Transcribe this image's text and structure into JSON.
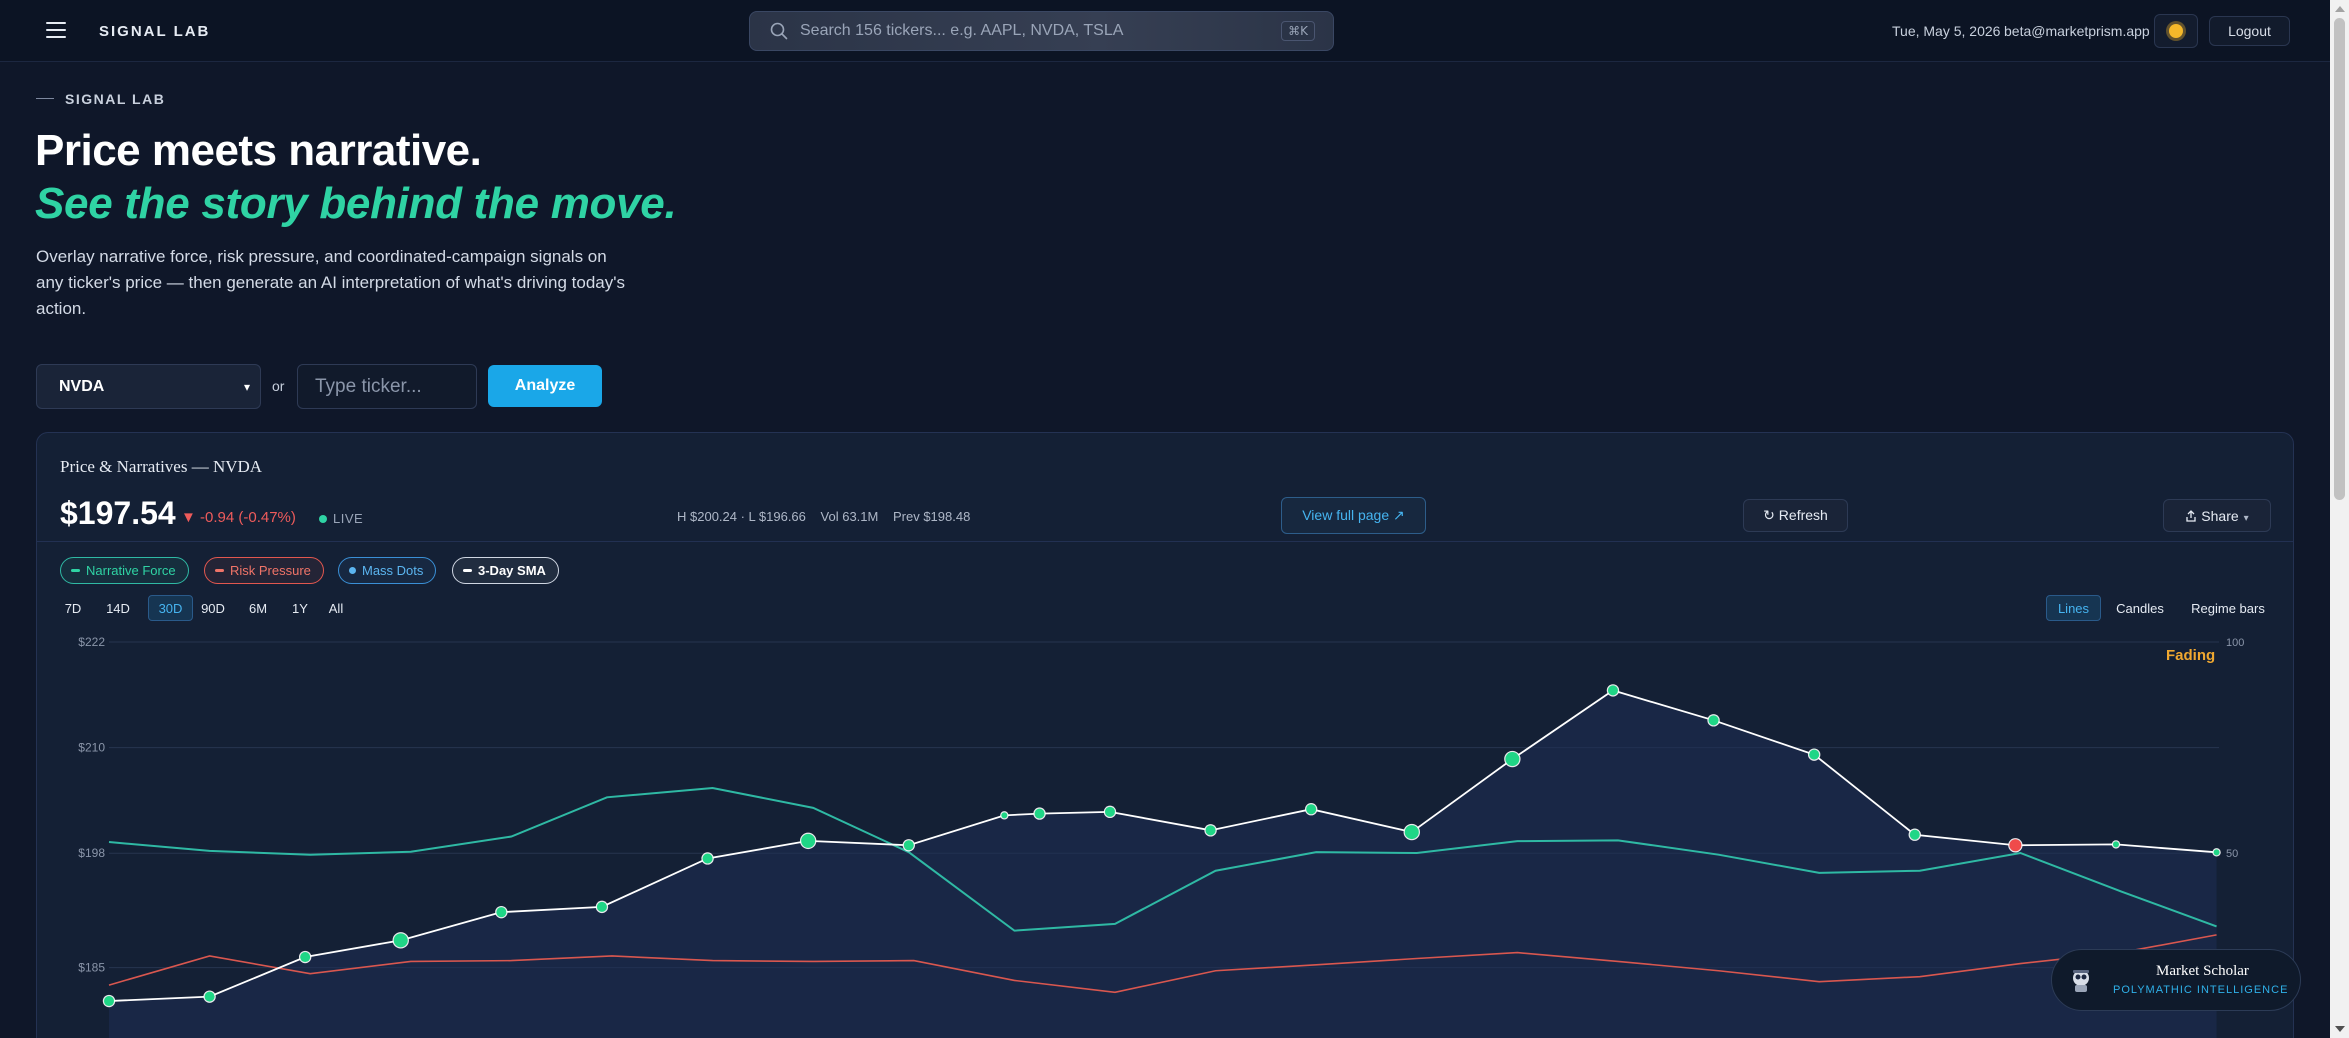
{
  "topbar": {
    "brand": "SIGNAL LAB",
    "search_placeholder": "Search 156 tickers... e.g. AAPL, NVDA, TSLA",
    "search_shortcut": "⌘K",
    "date": "Tue, May 5, 2026",
    "email": "beta@marketprism.app",
    "logout_label": "Logout",
    "icons": [
      "hamburger-icon",
      "search-icon",
      "sun-icon"
    ]
  },
  "hero": {
    "eyebrow": "SIGNAL LAB",
    "headline": "Price meets narrative.",
    "subheadline": "See the story behind the move.",
    "description": "Overlay narrative force, risk pressure, and coordinated-campaign signals on any ticker's price — then generate an AI interpretation of what's driving today's action."
  },
  "controls": {
    "selected_ticker": "NVDA",
    "or_label": "or",
    "ticker_placeholder": "Type ticker...",
    "analyze_label": "Analyze"
  },
  "card": {
    "title": "Price & Narratives — NVDA",
    "price": "$197.54",
    "change": "▼ -0.94 (-0.47%)",
    "live_label": "LIVE",
    "stats": {
      "hl": "H $200.24 · L $196.66",
      "vol": "Vol 63.1M",
      "prev": "Prev $198.48"
    },
    "view_full_label": "View full page ↗",
    "refresh_label": "↻  Refresh",
    "share_label": "Share",
    "legend": {
      "narrative_force": "Narrative Force",
      "risk_pressure": "Risk Pressure",
      "mass_dots": "Mass Dots",
      "sma": "3-Day SMA"
    },
    "ranges": [
      "7D",
      "14D",
      "30D",
      "90D",
      "6M",
      "1Y",
      "All"
    ],
    "active_range": "30D",
    "views": [
      "Lines",
      "Candles",
      "Regime bars"
    ],
    "active_view": "Lines",
    "regime_label": "Fading"
  },
  "chart_data": {
    "type": "line",
    "ylim": [
      180.2,
      222
    ],
    "y_ticks": [
      222,
      210,
      198,
      185
    ],
    "y_tick_labels": [
      "$222",
      "$210",
      "$198",
      "$185"
    ],
    "y2lim": [
      0,
      100
    ],
    "y2_ticks": [
      100,
      50
    ],
    "y2_tick_labels": [
      "100",
      "50"
    ],
    "grid": true,
    "colors": {
      "price": "#ffffff",
      "narrative": "#2fb9a4",
      "risk": "#d9574f",
      "dot_green": "#1fd686",
      "dot_red": "#ef4b4b",
      "area_fill": "#1d2e53"
    },
    "series": [
      {
        "key": "price",
        "points": [
          [
            0.0,
            181.2,
            5,
            "g"
          ],
          [
            1.0,
            181.7,
            5,
            "g"
          ],
          [
            1.95,
            186.2,
            5,
            "g"
          ],
          [
            2.9,
            188.1,
            7,
            "g"
          ],
          [
            3.9,
            191.3,
            5,
            "g"
          ],
          [
            4.9,
            191.9,
            5,
            "g"
          ],
          [
            5.95,
            197.4,
            5,
            "g"
          ],
          [
            6.95,
            199.4,
            7,
            "g"
          ],
          [
            7.95,
            198.9,
            5,
            "g"
          ],
          [
            8.9,
            202.3,
            3,
            "g"
          ],
          [
            9.25,
            202.5,
            5,
            "g"
          ],
          [
            9.95,
            202.7,
            5,
            "g"
          ],
          [
            10.95,
            200.6,
            5,
            "g"
          ],
          [
            11.95,
            203.0,
            5,
            "g"
          ],
          [
            12.95,
            200.4,
            7,
            "g"
          ],
          [
            13.95,
            208.7,
            7,
            "g"
          ],
          [
            14.95,
            216.5,
            5,
            "g"
          ],
          [
            15.95,
            213.1,
            5,
            "g"
          ],
          [
            16.95,
            209.2,
            5,
            "g"
          ],
          [
            17.95,
            200.1,
            5,
            "g"
          ],
          [
            18.95,
            198.9,
            6,
            "r"
          ],
          [
            19.95,
            199.0,
            3,
            "g"
          ],
          [
            20.95,
            198.1,
            3,
            "g"
          ]
        ]
      },
      {
        "key": "narrative",
        "points": [
          [
            0.0,
            52.6
          ],
          [
            1.0,
            50.5
          ],
          [
            2.0,
            49.6
          ],
          [
            3.0,
            50.3
          ],
          [
            4.0,
            53.9
          ],
          [
            4.95,
            63.2
          ],
          [
            6.0,
            65.4
          ],
          [
            7.0,
            60.7
          ],
          [
            7.95,
            50.2
          ],
          [
            9.0,
            31.6
          ],
          [
            10.0,
            33.2
          ],
          [
            11.0,
            45.8
          ],
          [
            12.0,
            50.2
          ],
          [
            13.0,
            50.0
          ],
          [
            14.0,
            52.8
          ],
          [
            15.0,
            53.0
          ],
          [
            16.0,
            49.6
          ],
          [
            17.0,
            45.3
          ],
          [
            18.0,
            45.8
          ],
          [
            19.0,
            50.0
          ],
          [
            20.0,
            40.9
          ],
          [
            20.95,
            32.6
          ]
        ]
      },
      {
        "key": "risk",
        "points": [
          [
            0.0,
            18.7
          ],
          [
            1.0,
            25.6
          ],
          [
            2.0,
            21.4
          ],
          [
            3.0,
            24.3
          ],
          [
            4.0,
            24.5
          ],
          [
            5.0,
            25.6
          ],
          [
            6.0,
            24.5
          ],
          [
            7.0,
            24.3
          ],
          [
            8.0,
            24.5
          ],
          [
            9.0,
            19.8
          ],
          [
            10.0,
            17.0
          ],
          [
            11.0,
            22.1
          ],
          [
            12.0,
            23.5
          ],
          [
            13.0,
            25.0
          ],
          [
            14.0,
            26.4
          ],
          [
            15.0,
            24.3
          ],
          [
            16.0,
            22.1
          ],
          [
            17.0,
            19.5
          ],
          [
            18.0,
            20.7
          ],
          [
            19.0,
            23.8
          ],
          [
            20.0,
            26.4
          ],
          [
            20.95,
            30.6
          ]
        ]
      }
    ]
  },
  "scholar": {
    "name": "Market Scholar",
    "subtitle": "POLYMATHIC INTELLIGENCE"
  }
}
